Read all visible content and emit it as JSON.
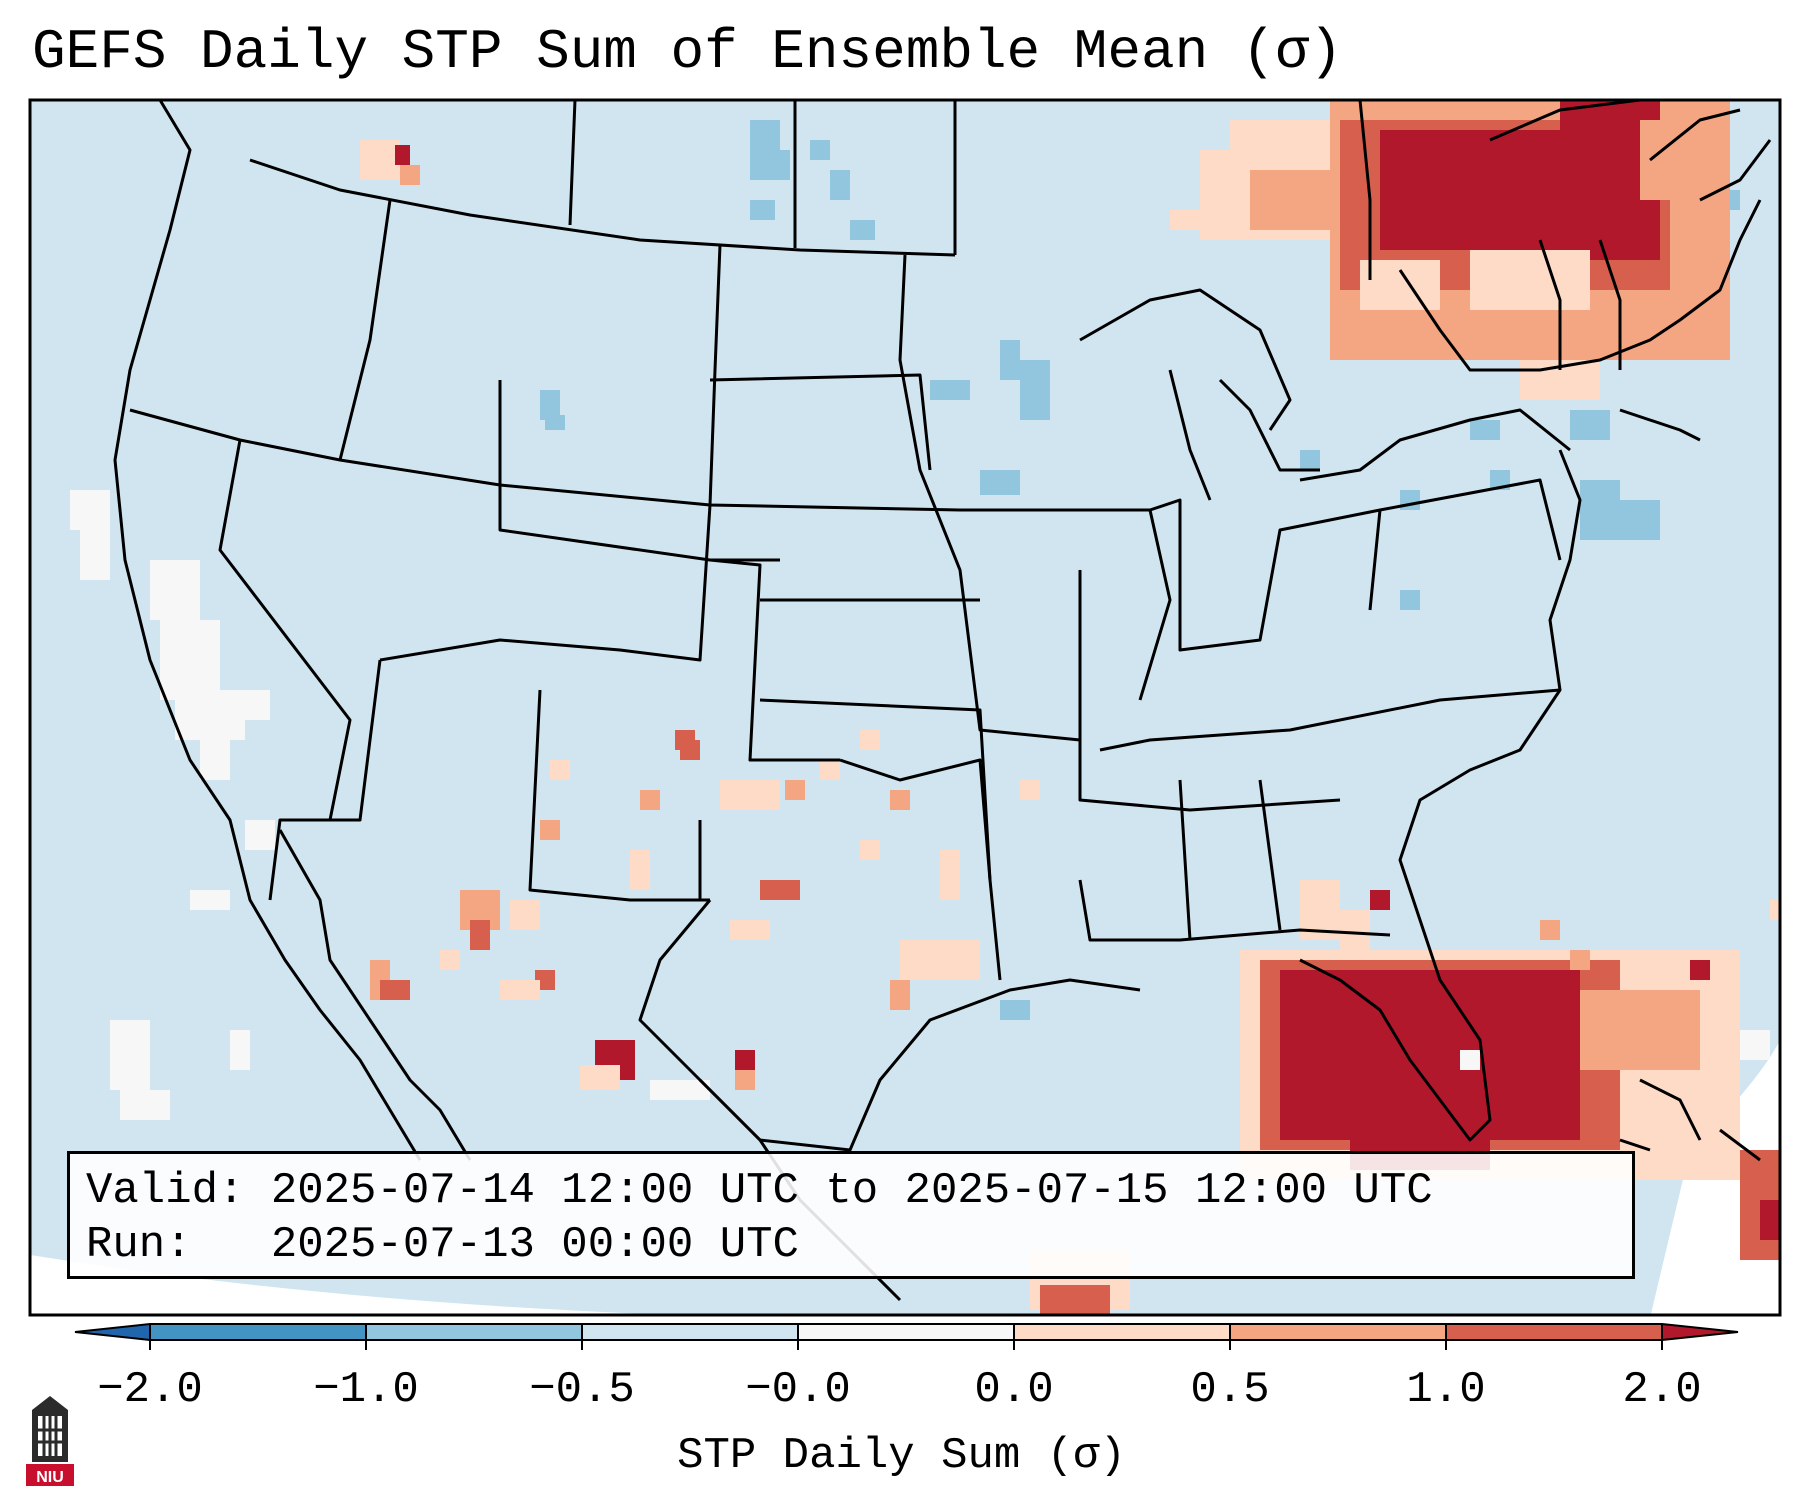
{
  "title": "GEFS Daily STP Sum of Ensemble Mean (σ)",
  "info": {
    "valid_label": "Valid:",
    "valid_value": "2025-07-14 12:00 UTC to 2025-07-15 12:00 UTC",
    "run_label": "Run:",
    "run_value": "2025-07-13 00:00 UTC"
  },
  "colorbar": {
    "label": "STP Daily Sum (σ)",
    "ticks": [
      "−2.0",
      "−1.0",
      "−0.5",
      "−0.0",
      "0.0",
      "0.5",
      "1.0",
      "2.0"
    ],
    "bins": [
      {
        "range": "<-2.0",
        "color": "#2166ac"
      },
      {
        "range": "-2.0 to -1.0",
        "color": "#4393c3"
      },
      {
        "range": "-1.0 to -0.5",
        "color": "#92c5de"
      },
      {
        "range": "-0.5 to -0.0",
        "color": "#d1e5f0"
      },
      {
        "range": "-0.0 to 0.0",
        "color": "#f7f7f7"
      },
      {
        "range": "0.0 to 0.5",
        "color": "#fddbc7"
      },
      {
        "range": "0.5 to 1.0",
        "color": "#f4a582"
      },
      {
        "range": "1.0 to 2.0",
        "color": "#d6604d"
      },
      {
        "range": ">2.0",
        "color": "#b2182b"
      }
    ]
  },
  "logo": {
    "text": "NIU",
    "icon": "university-tower-logo"
  },
  "map": {
    "background_color": "#d1e5f0",
    "hotspots": [
      {
        "region": "Quebec / Ontario",
        "level": "high"
      },
      {
        "region": "Florida / Gulf of Mexico",
        "level": "high"
      },
      {
        "region": "New Mexico / West Texas",
        "level": "scattered"
      },
      {
        "region": "Northern Mexico",
        "level": "scattered"
      }
    ]
  }
}
